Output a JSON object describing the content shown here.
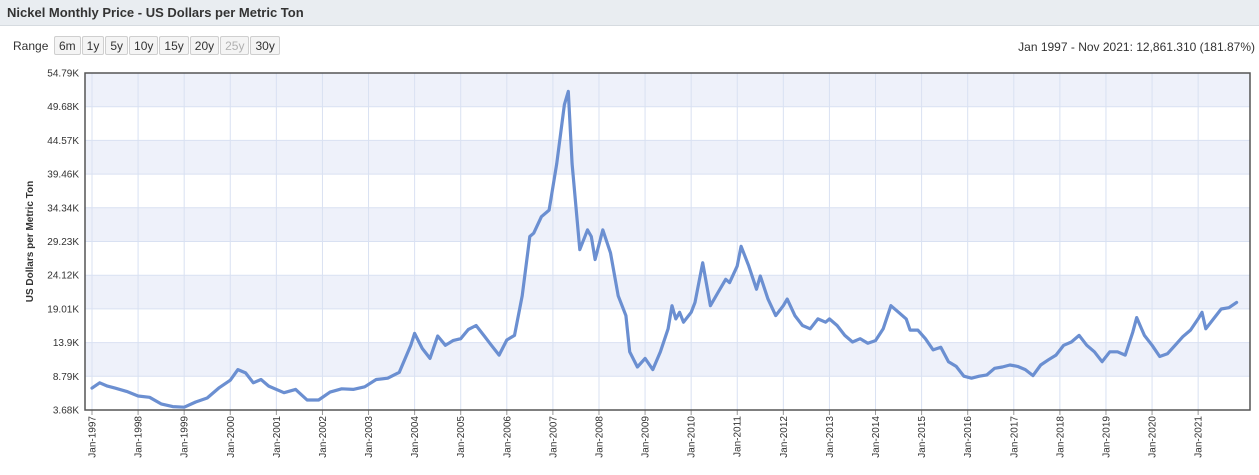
{
  "header": {
    "title": "Nickel Monthly Price - US Dollars per Metric Ton"
  },
  "range": {
    "label": "Range",
    "buttons": [
      {
        "label": "6m",
        "enabled": true
      },
      {
        "label": "1y",
        "enabled": true
      },
      {
        "label": "5y",
        "enabled": true
      },
      {
        "label": "10y",
        "enabled": true
      },
      {
        "label": "15y",
        "enabled": true
      },
      {
        "label": "20y",
        "enabled": true
      },
      {
        "label": "25y",
        "enabled": false
      },
      {
        "label": "30y",
        "enabled": true
      }
    ],
    "summary": "Jan 1997 - Nov 2021: 12,861.310 (181.87%)"
  },
  "colors": {
    "line": "#6b8fd1",
    "band": "#eef1fa",
    "grid": "#d9e1f2"
  },
  "chart_data": {
    "type": "line",
    "title": "Nickel Monthly Price - US Dollars per Metric Ton",
    "ylabel": "US Dollars per Metric Ton",
    "xlabel": "",
    "ylim": [
      3.68,
      54.79
    ],
    "y_unit": "K",
    "y_ticks": [
      "3.68K",
      "8.79K",
      "13.9K",
      "19.01K",
      "24.12K",
      "29.23K",
      "34.34K",
      "39.46K",
      "44.57K",
      "49.68K",
      "54.79K"
    ],
    "x_ticks": [
      "Jan-1997",
      "Jan-1998",
      "Jan-1999",
      "Jan-2000",
      "Jan-2001",
      "Jan-2002",
      "Jan-2003",
      "Jan-2004",
      "Jan-2005",
      "Jan-2006",
      "Jan-2007",
      "Jan-2008",
      "Jan-2009",
      "Jan-2010",
      "Jan-2011",
      "Jan-2012",
      "Jan-2013",
      "Jan-2014",
      "Jan-2015",
      "Jan-2016",
      "Jan-2017",
      "Jan-2018",
      "Jan-2019",
      "Jan-2020",
      "Jan-2021"
    ],
    "grid": true,
    "legend": "none",
    "series": [
      {
        "points": [
          [
            "1997-01",
            7.0
          ],
          [
            "1997-03",
            7.8
          ],
          [
            "1997-05",
            7.3
          ],
          [
            "1997-07",
            7.0
          ],
          [
            "1997-10",
            6.5
          ],
          [
            "1998-01",
            5.8
          ],
          [
            "1998-04",
            5.6
          ],
          [
            "1998-07",
            4.6
          ],
          [
            "1998-10",
            4.2
          ],
          [
            "1999-01",
            4.1
          ],
          [
            "1999-04",
            4.9
          ],
          [
            "1999-07",
            5.5
          ],
          [
            "1999-10",
            7.0
          ],
          [
            "2000-01",
            8.2
          ],
          [
            "2000-03",
            9.8
          ],
          [
            "2000-05",
            9.3
          ],
          [
            "2000-07",
            7.8
          ],
          [
            "2000-09",
            8.3
          ],
          [
            "2000-11",
            7.3
          ],
          [
            "2001-03",
            6.3
          ],
          [
            "2001-06",
            6.8
          ],
          [
            "2001-09",
            5.2
          ],
          [
            "2001-12",
            5.2
          ],
          [
            "2002-03",
            6.4
          ],
          [
            "2002-06",
            6.9
          ],
          [
            "2002-09",
            6.8
          ],
          [
            "2002-12",
            7.2
          ],
          [
            "2003-03",
            8.3
          ],
          [
            "2003-06",
            8.5
          ],
          [
            "2003-09",
            9.4
          ],
          [
            "2003-12",
            13.5
          ],
          [
            "2004-01",
            15.3
          ],
          [
            "2004-03",
            13.0
          ],
          [
            "2004-05",
            11.5
          ],
          [
            "2004-07",
            14.9
          ],
          [
            "2004-09",
            13.5
          ],
          [
            "2004-11",
            14.2
          ],
          [
            "2005-01",
            14.5
          ],
          [
            "2005-03",
            15.9
          ],
          [
            "2005-05",
            16.5
          ],
          [
            "2005-07",
            15.0
          ],
          [
            "2005-09",
            13.5
          ],
          [
            "2005-11",
            12.0
          ],
          [
            "2006-01",
            14.3
          ],
          [
            "2006-03",
            15.0
          ],
          [
            "2006-05",
            21.0
          ],
          [
            "2006-07",
            30.0
          ],
          [
            "2006-08",
            30.5
          ],
          [
            "2006-10",
            33.0
          ],
          [
            "2006-12",
            34.0
          ],
          [
            "2007-02",
            41.0
          ],
          [
            "2007-04",
            50.0
          ],
          [
            "2007-05",
            52.0
          ],
          [
            "2007-06",
            41.0
          ],
          [
            "2007-08",
            28.0
          ],
          [
            "2007-10",
            31.0
          ],
          [
            "2007-11",
            30.0
          ],
          [
            "2007-12",
            26.5
          ],
          [
            "2008-02",
            31.0
          ],
          [
            "2008-04",
            27.5
          ],
          [
            "2008-06",
            21.0
          ],
          [
            "2008-08",
            18.0
          ],
          [
            "2008-09",
            12.5
          ],
          [
            "2008-11",
            10.2
          ],
          [
            "2009-01",
            11.5
          ],
          [
            "2009-03",
            9.8
          ],
          [
            "2009-05",
            12.5
          ],
          [
            "2009-07",
            16.0
          ],
          [
            "2009-08",
            19.5
          ],
          [
            "2009-09",
            17.5
          ],
          [
            "2009-10",
            18.5
          ],
          [
            "2009-11",
            17.0
          ],
          [
            "2010-01",
            18.5
          ],
          [
            "2010-02",
            20.0
          ],
          [
            "2010-04",
            26.0
          ],
          [
            "2010-06",
            19.5
          ],
          [
            "2010-08",
            21.5
          ],
          [
            "2010-10",
            23.5
          ],
          [
            "2010-11",
            23.0
          ],
          [
            "2011-01",
            25.5
          ],
          [
            "2011-02",
            28.5
          ],
          [
            "2011-04",
            25.5
          ],
          [
            "2011-06",
            22.0
          ],
          [
            "2011-07",
            24.0
          ],
          [
            "2011-09",
            20.5
          ],
          [
            "2011-11",
            18.0
          ],
          [
            "2012-01",
            19.5
          ],
          [
            "2012-02",
            20.5
          ],
          [
            "2012-04",
            18.0
          ],
          [
            "2012-06",
            16.5
          ],
          [
            "2012-08",
            16.0
          ],
          [
            "2012-10",
            17.5
          ],
          [
            "2012-12",
            17.0
          ],
          [
            "2013-01",
            17.5
          ],
          [
            "2013-03",
            16.5
          ],
          [
            "2013-05",
            15.0
          ],
          [
            "2013-07",
            14.0
          ],
          [
            "2013-09",
            14.5
          ],
          [
            "2013-11",
            13.8
          ],
          [
            "2014-01",
            14.2
          ],
          [
            "2014-03",
            16.0
          ],
          [
            "2014-05",
            19.5
          ],
          [
            "2014-07",
            18.5
          ],
          [
            "2014-09",
            17.5
          ],
          [
            "2014-10",
            15.8
          ],
          [
            "2014-12",
            15.8
          ],
          [
            "2015-02",
            14.5
          ],
          [
            "2015-04",
            12.8
          ],
          [
            "2015-06",
            13.2
          ],
          [
            "2015-08",
            11.0
          ],
          [
            "2015-10",
            10.3
          ],
          [
            "2015-12",
            8.8
          ],
          [
            "2016-02",
            8.5
          ],
          [
            "2016-04",
            8.8
          ],
          [
            "2016-06",
            9.0
          ],
          [
            "2016-08",
            10.0
          ],
          [
            "2016-10",
            10.2
          ],
          [
            "2016-12",
            10.5
          ],
          [
            "2017-02",
            10.3
          ],
          [
            "2017-04",
            9.8
          ],
          [
            "2017-06",
            8.9
          ],
          [
            "2017-08",
            10.5
          ],
          [
            "2017-10",
            11.3
          ],
          [
            "2017-12",
            12.0
          ],
          [
            "2018-02",
            13.5
          ],
          [
            "2018-04",
            14.0
          ],
          [
            "2018-06",
            15.0
          ],
          [
            "2018-08",
            13.5
          ],
          [
            "2018-10",
            12.5
          ],
          [
            "2018-12",
            11.0
          ],
          [
            "2019-02",
            12.5
          ],
          [
            "2019-04",
            12.5
          ],
          [
            "2019-06",
            12.0
          ],
          [
            "2019-08",
            15.5
          ],
          [
            "2019-09",
            17.7
          ],
          [
            "2019-11",
            15.0
          ],
          [
            "2020-01",
            13.5
          ],
          [
            "2020-03",
            11.8
          ],
          [
            "2020-05",
            12.2
          ],
          [
            "2020-07",
            13.5
          ],
          [
            "2020-09",
            14.8
          ],
          [
            "2020-11",
            15.8
          ],
          [
            "2021-01",
            17.5
          ],
          [
            "2021-02",
            18.5
          ],
          [
            "2021-03",
            16.0
          ],
          [
            "2021-05",
            17.5
          ],
          [
            "2021-07",
            19.0
          ],
          [
            "2021-09",
            19.2
          ],
          [
            "2021-11",
            20.0
          ]
        ]
      }
    ]
  }
}
